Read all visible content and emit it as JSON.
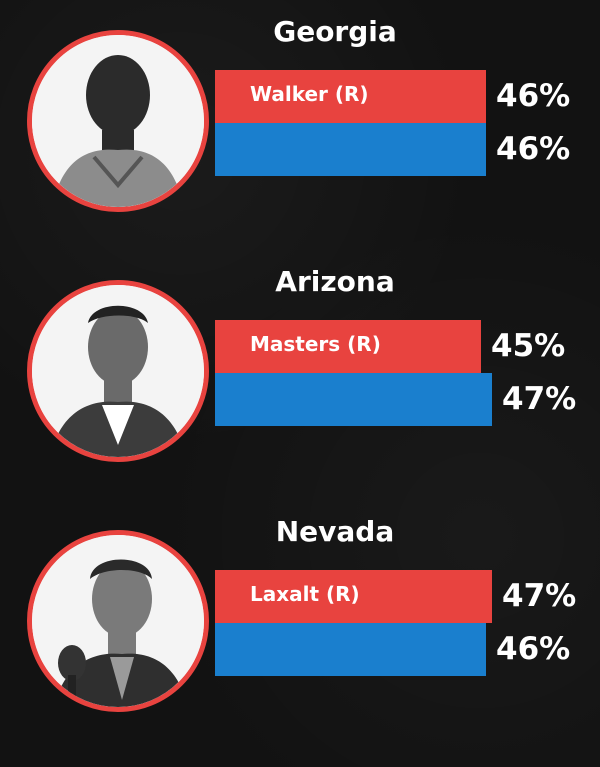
{
  "chart_data": [
    {
      "type": "bar",
      "state": "Georgia",
      "series": [
        {
          "label": "Walker (R)",
          "value": 46,
          "color": "#e8433f"
        },
        {
          "label": "",
          "value": 46,
          "color": "#1a7fce"
        }
      ],
      "labels": [
        "46%",
        "46%"
      ],
      "portrait_icon": "candidate-photo"
    },
    {
      "type": "bar",
      "state": "Arizona",
      "series": [
        {
          "label": "Masters (R)",
          "value": 45,
          "color": "#e8433f"
        },
        {
          "label": "",
          "value": 47,
          "color": "#1a7fce"
        }
      ],
      "labels": [
        "45%",
        "47%"
      ],
      "portrait_icon": "candidate-photo"
    },
    {
      "type": "bar",
      "state": "Nevada",
      "series": [
        {
          "label": "Laxalt (R)",
          "value": 47,
          "color": "#e8433f"
        },
        {
          "label": "",
          "value": 46,
          "color": "#1a7fce"
        }
      ],
      "labels": [
        "47%",
        "46%"
      ],
      "portrait_icon": "candidate-photo"
    }
  ]
}
